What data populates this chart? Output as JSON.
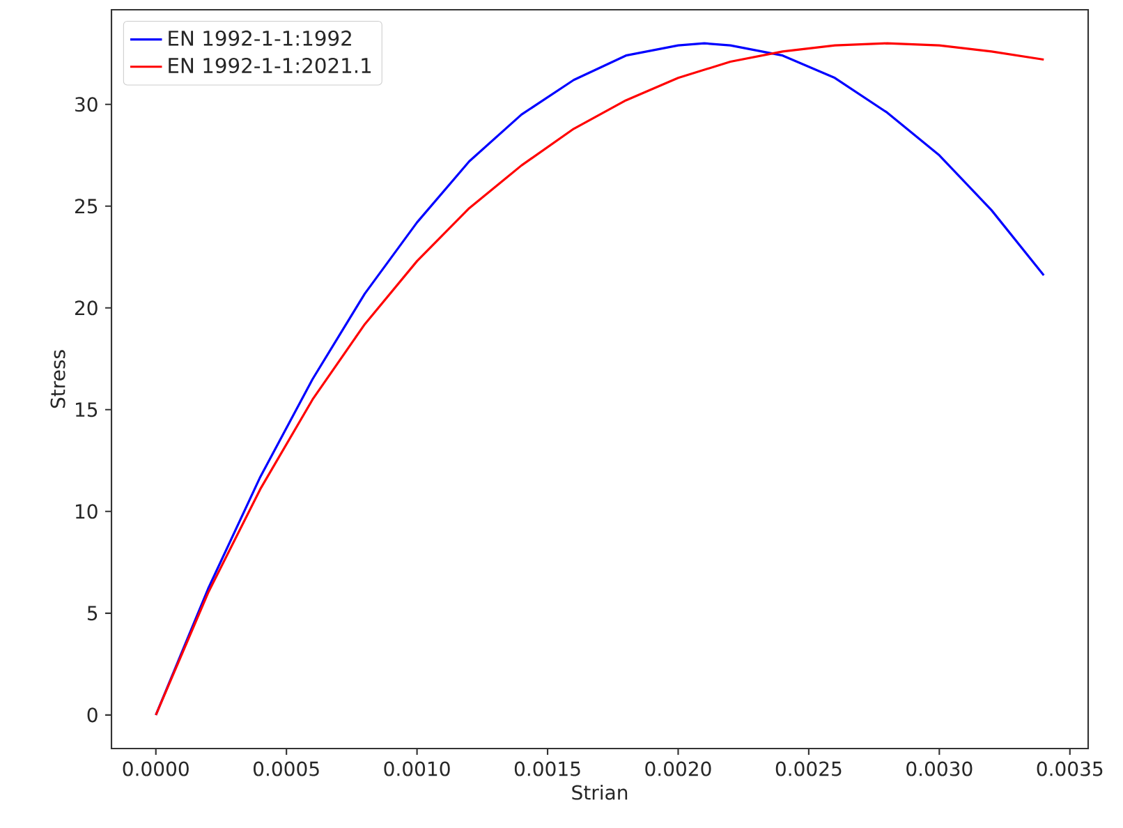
{
  "chart_data": {
    "type": "line",
    "xlabel": "Strian",
    "ylabel": "Stress",
    "x": [
      0,
      0.0002,
      0.0004,
      0.0006,
      0.0008,
      0.001,
      0.0012,
      0.0014,
      0.0016,
      0.0018,
      0.002,
      0.0022,
      0.0024,
      0.0026,
      0.0028,
      0.003,
      0.0032,
      0.0034
    ],
    "series": [
      {
        "name": "EN 1992-1-1:1992",
        "color": "#0000ff",
        "x": [
          0,
          0.0002,
          0.0004,
          0.0006,
          0.0008,
          0.001,
          0.0012,
          0.0014,
          0.0016,
          0.0018,
          0.002,
          0.0021,
          0.0022,
          0.0024,
          0.0026,
          0.0028,
          0.003,
          0.0032,
          0.0034
        ],
        "values": [
          0,
          6.2,
          11.7,
          16.5,
          20.7,
          24.2,
          27.2,
          29.5,
          31.2,
          32.4,
          32.9,
          33.0,
          32.9,
          32.4,
          31.3,
          29.6,
          27.5,
          24.8,
          21.6
        ]
      },
      {
        "name": "EN 1992-1-1:2021.1",
        "color": "#ff0000",
        "values": [
          0,
          6.0,
          11.1,
          15.5,
          19.2,
          22.3,
          24.9,
          27.0,
          28.8,
          30.2,
          31.3,
          32.1,
          32.6,
          32.9,
          33.0,
          32.9,
          32.6,
          32.2
        ]
      }
    ],
    "xlim": [
      -0.00017,
      0.00357
    ],
    "ylim": [
      -1.65,
      34.65
    ],
    "xticks": [
      {
        "value": 0,
        "label": "0.0000"
      },
      {
        "value": 0.0005,
        "label": "0.0005"
      },
      {
        "value": 0.001,
        "label": "0.0010"
      },
      {
        "value": 0.0015,
        "label": "0.0015"
      },
      {
        "value": 0.002,
        "label": "0.0020"
      },
      {
        "value": 0.0025,
        "label": "0.0025"
      },
      {
        "value": 0.003,
        "label": "0.0030"
      },
      {
        "value": 0.0035,
        "label": "0.0035"
      }
    ],
    "yticks": [
      0,
      5,
      10,
      15,
      20,
      25,
      30
    ],
    "legend": "top left",
    "marker": "none",
    "line_style": "solid",
    "grid": false
  }
}
